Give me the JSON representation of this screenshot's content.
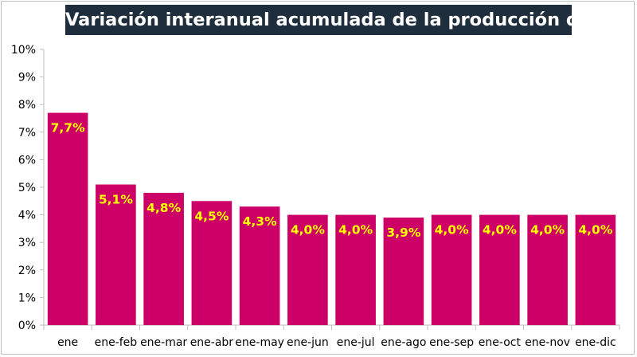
{
  "chart_data": {
    "type": "bar",
    "title": "Variación interanual acumulada de la producción de leche",
    "xlabel": "",
    "ylabel": "",
    "categories": [
      "ene",
      "ene-feb",
      "ene-mar",
      "ene-abr",
      "ene-may",
      "ene-jun",
      "ene-jul",
      "ene-ago",
      "ene-sep",
      "ene-oct",
      "ene-nov",
      "ene-dic"
    ],
    "values": [
      7.7,
      5.1,
      4.8,
      4.5,
      4.3,
      4.0,
      4.0,
      3.9,
      4.0,
      4.0,
      4.0,
      4.0
    ],
    "data_labels": [
      "7,7%",
      "5,1%",
      "4,8%",
      "4,5%",
      "4,3%",
      "4,0%",
      "4,0%",
      "3,9%",
      "4,0%",
      "4,0%",
      "4,0%",
      "4,0%"
    ],
    "ylim": [
      0,
      10
    ],
    "yticks": [
      0,
      1,
      2,
      3,
      4,
      5,
      6,
      7,
      8,
      9,
      10
    ],
    "ytick_labels": [
      "0%",
      "1%",
      "2%",
      "3%",
      "4%",
      "5%",
      "6%",
      "7%",
      "8%",
      "9%",
      "10%"
    ],
    "grid": false,
    "legend": "none",
    "colors": {
      "bar": "#cc0066",
      "data_label": "#ffff00",
      "title_bg": "#1f2e3d",
      "title_text": "#ffffff",
      "axis": "#bfbfbf"
    }
  }
}
